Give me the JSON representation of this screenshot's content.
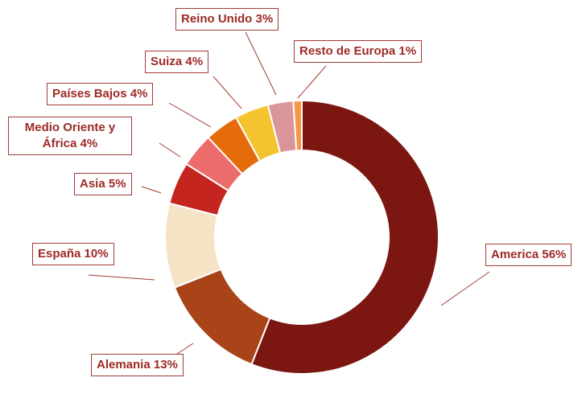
{
  "chart_data": {
    "type": "donut",
    "categories": [
      "America",
      "Alemania",
      "España",
      "Asia",
      "Medio Oriente y África",
      "Países Bajos",
      "Suiza",
      "Reino Unido",
      "Resto de Europa"
    ],
    "values": [
      56,
      13,
      10,
      5,
      4,
      4,
      4,
      3,
      1
    ],
    "value_labels": [
      "56%",
      "13%",
      "10%",
      "5%",
      "4%",
      "4%",
      "4%",
      "3%",
      "1%"
    ],
    "colors": [
      "#7b1611",
      "#a84418",
      "#f5e3c5",
      "#c4261f",
      "#ec6b6b",
      "#e46c0a",
      "#f4c430",
      "#d9959a",
      "#f79646"
    ]
  }
}
